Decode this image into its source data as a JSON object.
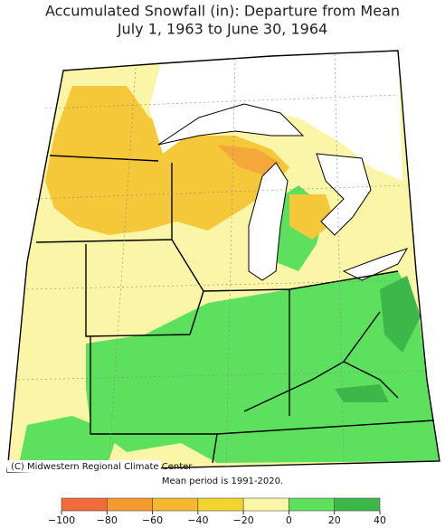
{
  "title": [
    "Accumulated Snowfall (in): Departure from Mean",
    "July 1, 1963 to June 30, 1964"
  ],
  "credit": "(C) Midwestern Regional Climate Center",
  "note": "Mean period is 1991-2020.",
  "legend": {
    "ticks": [
      "−100",
      "−80",
      "−60",
      "−40",
      "−20",
      "0",
      "20",
      "40"
    ],
    "colors": [
      "#f26b3a",
      "#f59a2e",
      "#f5b82e",
      "#f2d42e",
      "#fbf5a8",
      "#5de05d",
      "#3cb84a"
    ]
  }
}
